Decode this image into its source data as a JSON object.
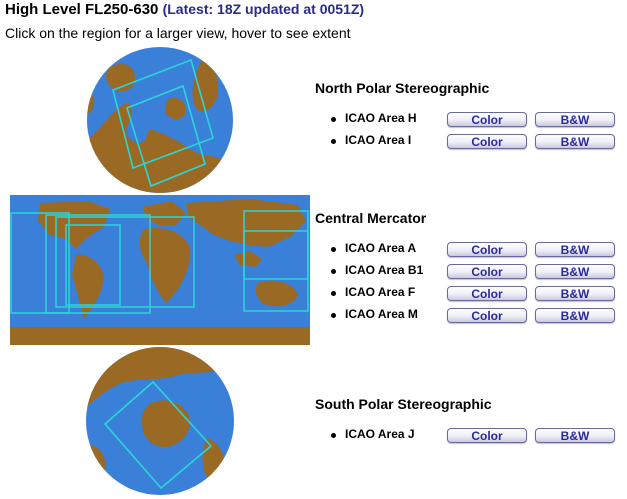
{
  "header": {
    "title": "High Level FL250-630",
    "latest": "(Latest: 18Z updated at 0051Z)",
    "instructions": "Click on the region for a larger view, hover to see extent"
  },
  "colors": {
    "ocean": "#3a7fd8",
    "land": "#9a6a24",
    "outline": "#2bd6d6",
    "button_text": "#2a2a9a"
  },
  "sections": [
    {
      "title": "North Polar Stereographic",
      "areas": [
        {
          "label": "ICAO Area H",
          "color_label": "Color",
          "bw_label": "B&W"
        },
        {
          "label": "ICAO Area I",
          "color_label": "Color",
          "bw_label": "B&W"
        }
      ]
    },
    {
      "title": "Central Mercator",
      "areas": [
        {
          "label": "ICAO Area A",
          "color_label": "Color",
          "bw_label": "B&W"
        },
        {
          "label": "ICAO Area B1",
          "color_label": "Color",
          "bw_label": "B&W"
        },
        {
          "label": "ICAO Area F",
          "color_label": "Color",
          "bw_label": "B&W"
        },
        {
          "label": "ICAO Area M",
          "color_label": "Color",
          "bw_label": "B&W"
        }
      ]
    },
    {
      "title": "South Polar Stereographic",
      "areas": [
        {
          "label": "ICAO Area J",
          "color_label": "Color",
          "bw_label": "B&W"
        }
      ]
    }
  ]
}
